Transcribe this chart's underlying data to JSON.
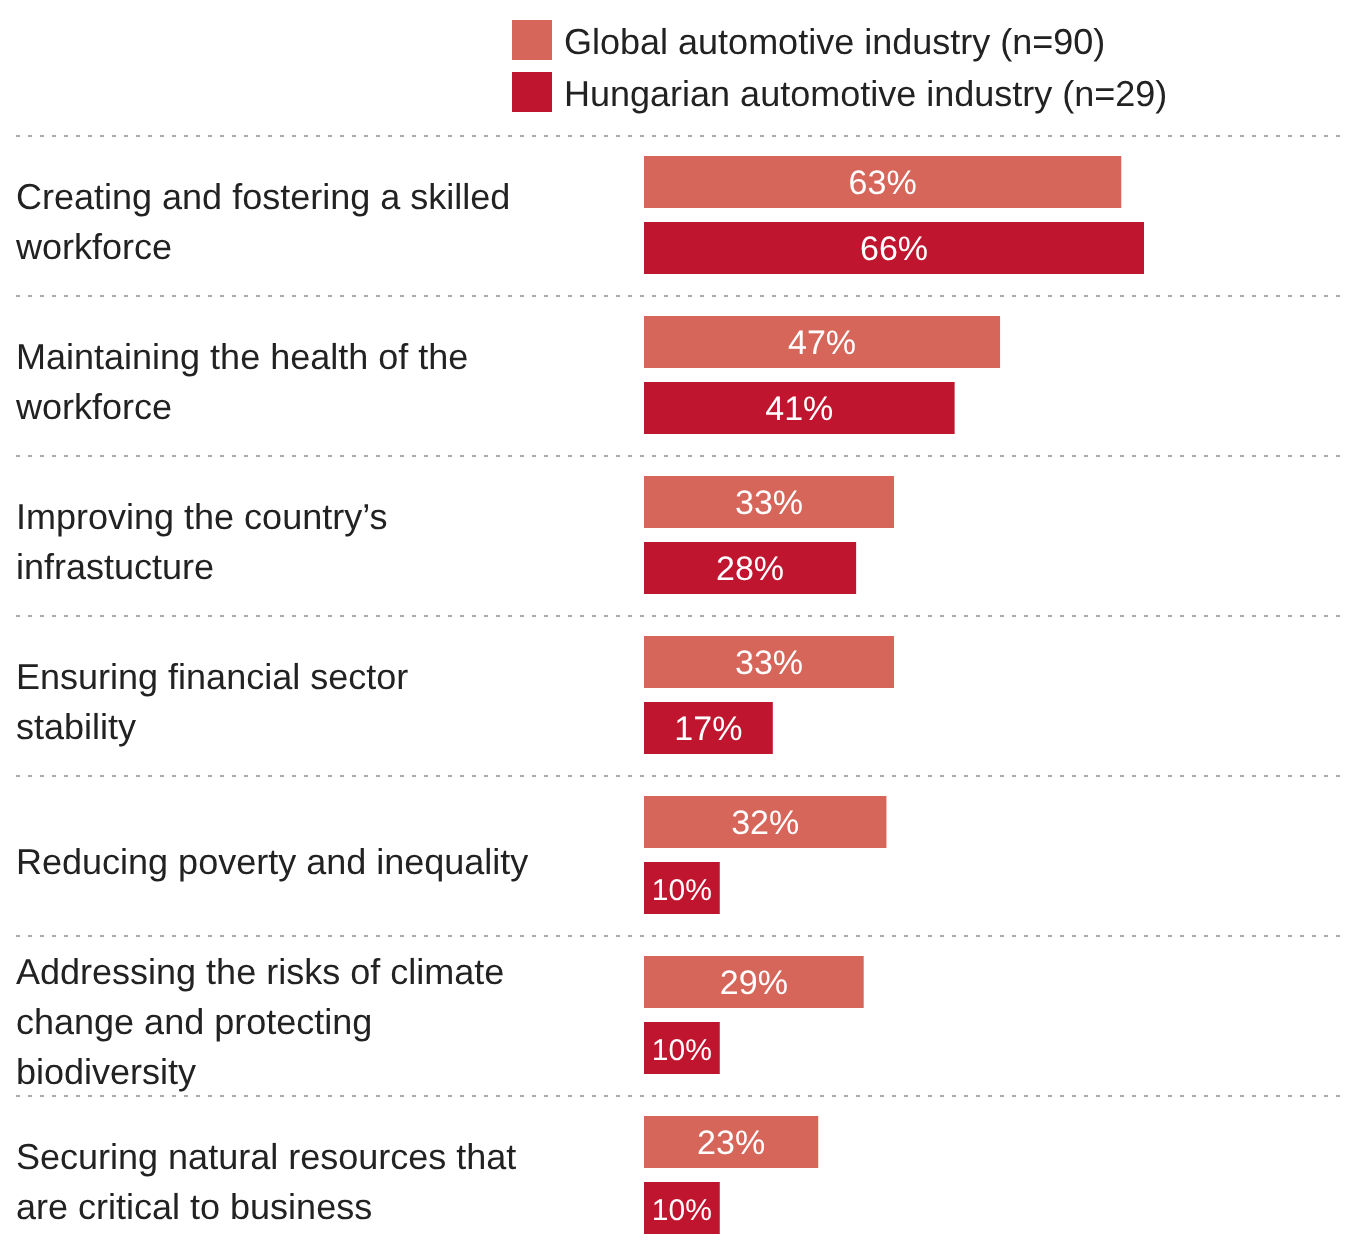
{
  "chart_data": {
    "type": "bar",
    "orientation": "horizontal",
    "legend": "top",
    "data_labels": true,
    "categories": [
      "Creating and fostering a skilled workforce",
      "Maintaining the health of the workforce",
      "Improving the country’s infrastucture",
      "Ensuring financial sector stability",
      "Reducing poverty and inequality",
      "Addressing the risks of climate change and protecting biodiversity",
      "Securing natural resources that are critical to business"
    ],
    "series": [
      {
        "name": "Global automotive industry (n=90)",
        "color": "#d6655a",
        "values": [
          63,
          47,
          33,
          33,
          32,
          29,
          23
        ],
        "value_labels": [
          "63%",
          "47%",
          "33%",
          "33%",
          "32%",
          "29%",
          "23%"
        ]
      },
      {
        "name": "Hungarian automotive industry (n=29)",
        "color": "#c0152f",
        "values": [
          66,
          41,
          28,
          17,
          10,
          10,
          10
        ],
        "value_labels": [
          "66%",
          "41%",
          "28%",
          "17%",
          "10%",
          "10%",
          "10%"
        ]
      }
    ]
  }
}
